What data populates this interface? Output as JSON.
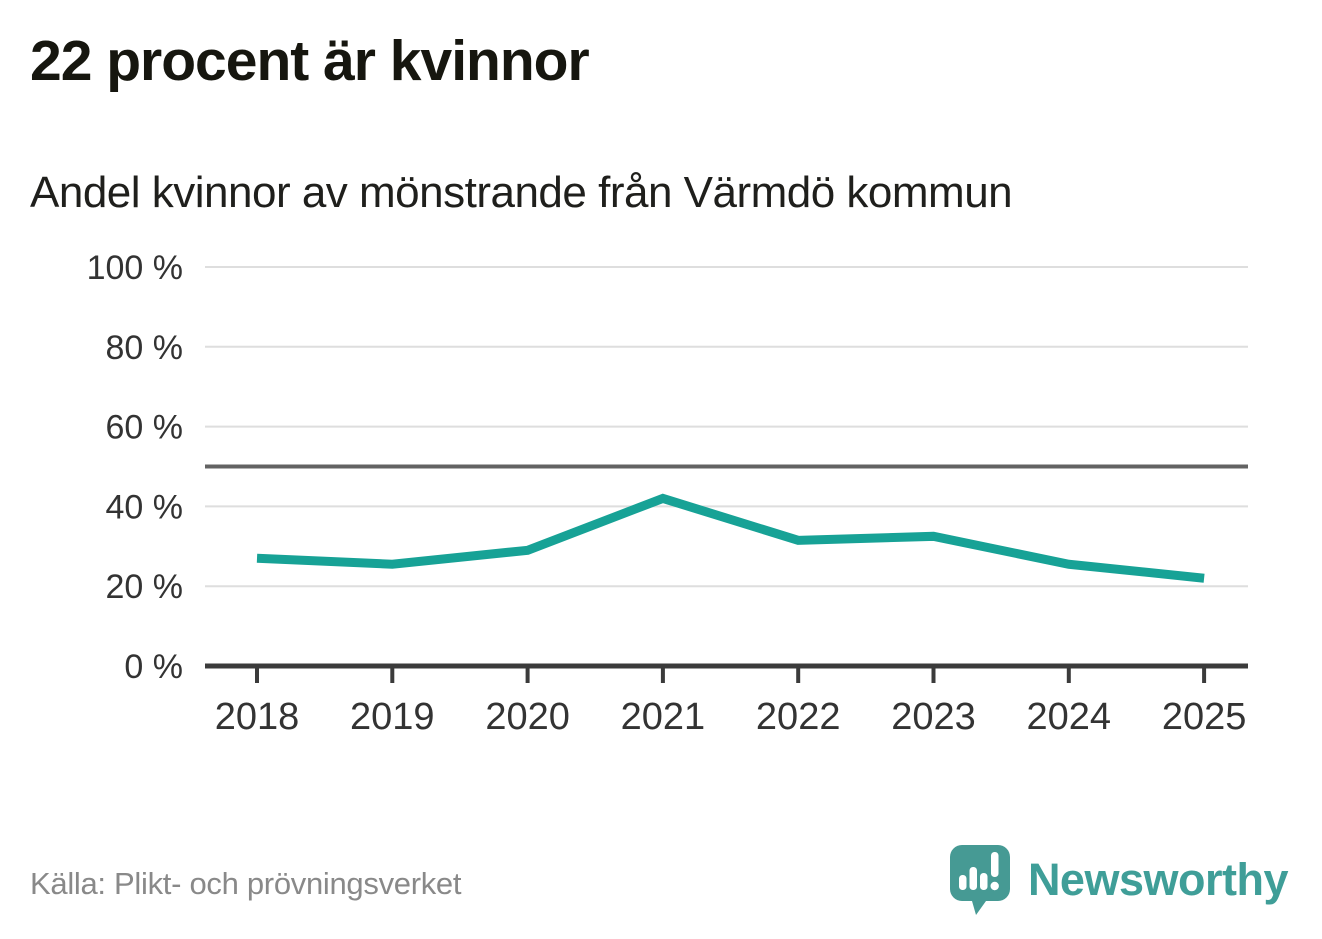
{
  "header": {
    "title": "22 procent är kvinnor",
    "subtitle": "Andel kvinnor av mönstrande från Värmdö kommun"
  },
  "chart_data": {
    "type": "line",
    "title": "22 procent är kvinnor",
    "subtitle": "Andel kvinnor av mönstrande från Värmdö kommun",
    "categories": [
      "2018",
      "2019",
      "2020",
      "2021",
      "2022",
      "2023",
      "2024",
      "2025"
    ],
    "series": [
      {
        "name": "Andel kvinnor av mönstrande",
        "values": [
          27,
          25.5,
          29,
          42,
          31.5,
          32.5,
          25.5,
          22
        ]
      }
    ],
    "unit": "%",
    "ylim": [
      0,
      100
    ],
    "yticks": [
      0,
      20,
      40,
      60,
      80,
      100
    ],
    "ytick_suffix": " %",
    "reference_line": 50,
    "grid": true,
    "legend": "none",
    "line_color": "#17a296",
    "gridline_color": "#dedede",
    "reference_line_color": "#636363",
    "axis_color": "#3b3b3b",
    "axis_label_color": "#333333"
  },
  "footer": {
    "source": "Källa: Plikt- och prövningsverket",
    "brand": "Newsworthy",
    "brand_color": "#3f9e98",
    "logo_icon": "bar-chart-speech-bubble"
  }
}
